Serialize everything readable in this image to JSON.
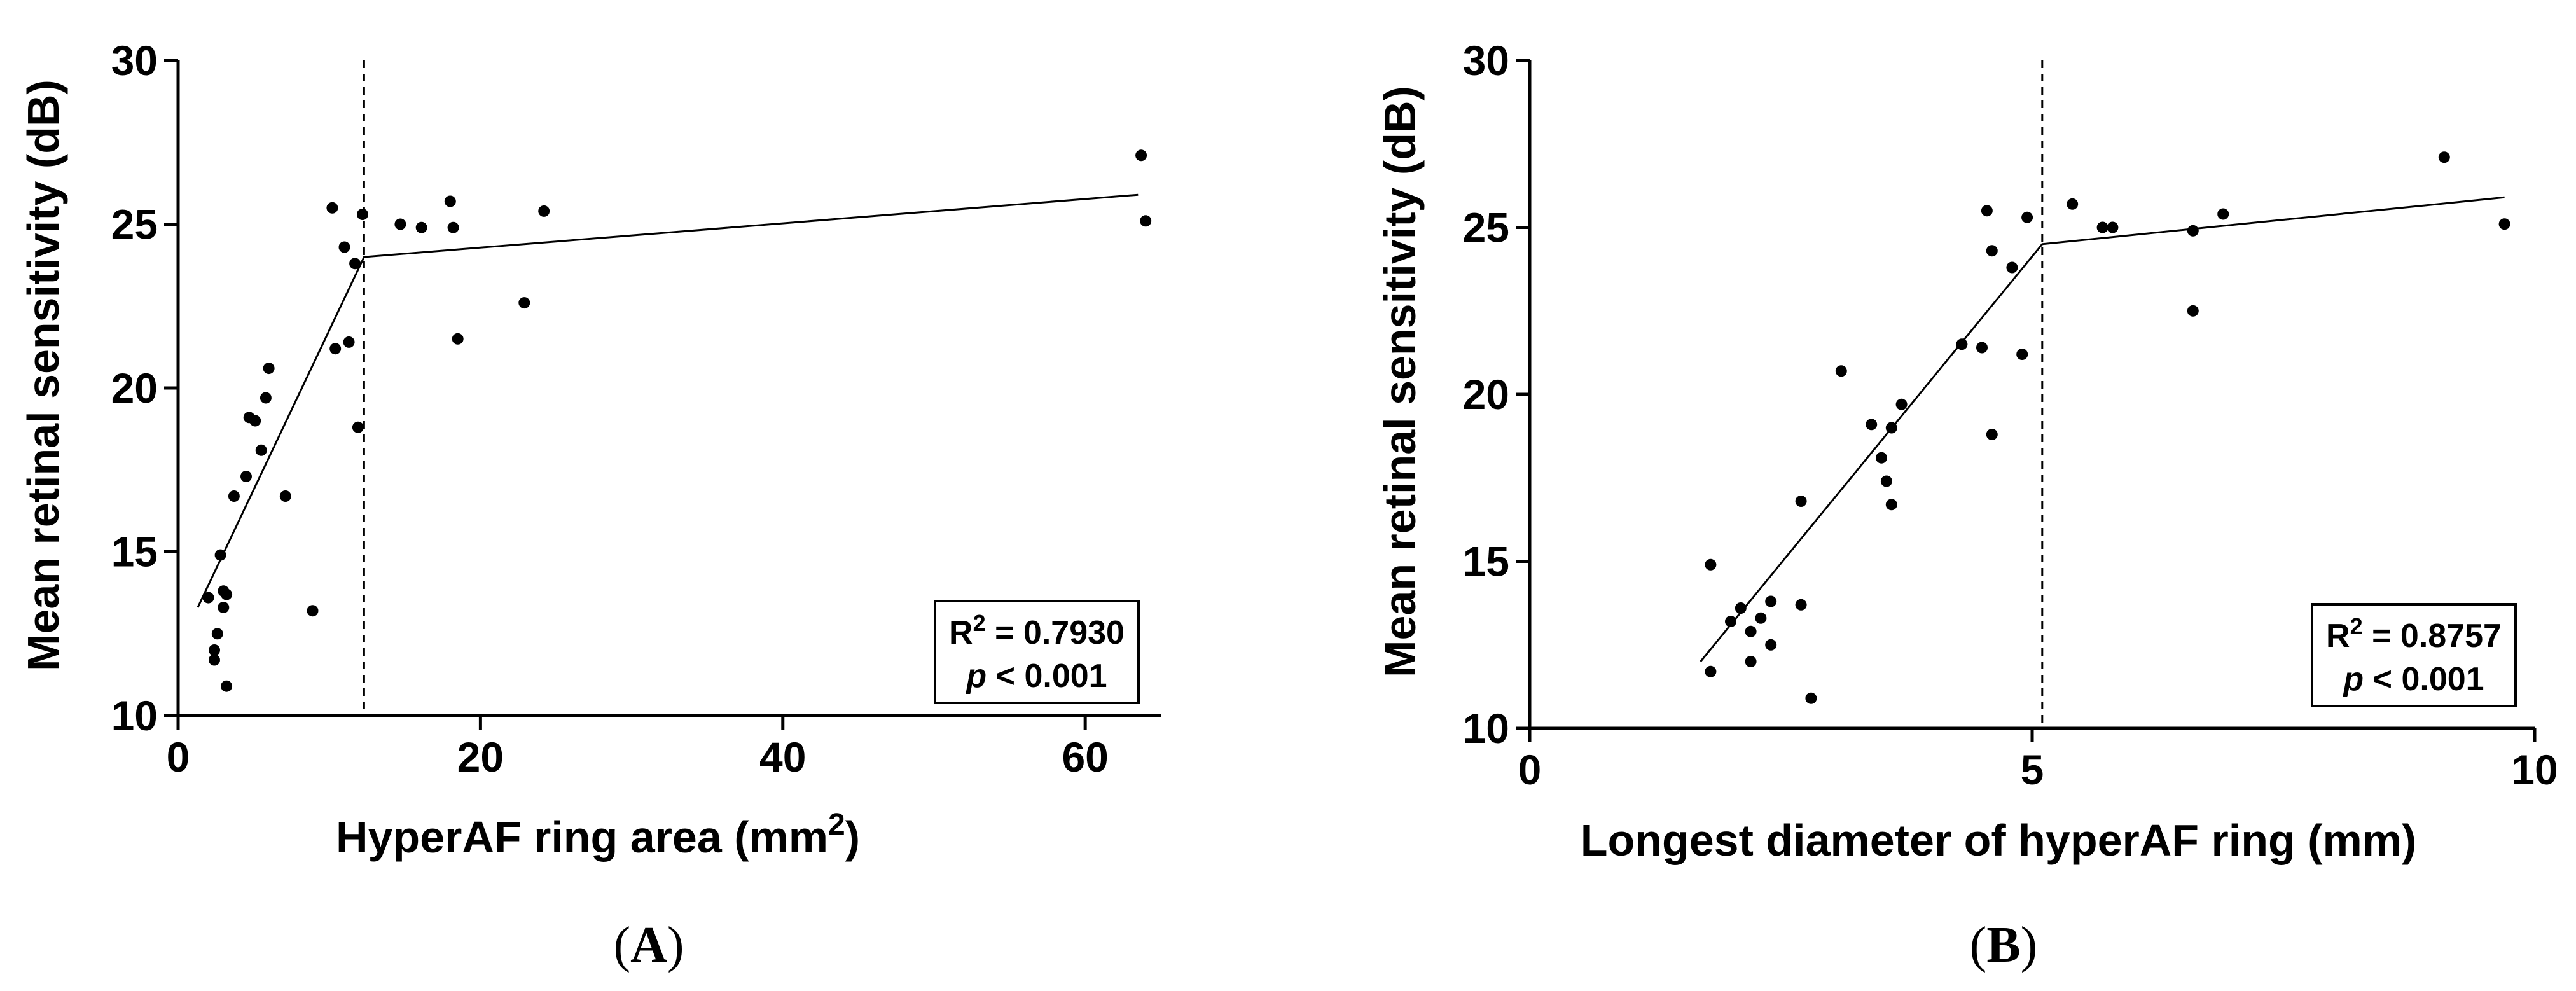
{
  "chart_data": [
    {
      "type": "scatter",
      "panel_label": "A",
      "xlabel": "HyperAF ring area (mm",
      "xlabel_sup": "2",
      "xlabel_tail": ")",
      "ylabel": "Mean retinal sensitivity (dB)",
      "xlim": [
        0,
        65
      ],
      "ylim": [
        10,
        30
      ],
      "xticks": [
        0,
        20,
        40,
        60
      ],
      "yticks": [
        10,
        15,
        20,
        25,
        30
      ],
      "grid": false,
      "breakpoint_x": 12.3,
      "fit_line": [
        [
          1.3,
          13.3
        ],
        [
          12.3,
          24.0
        ],
        [
          63.5,
          25.9
        ]
      ],
      "stats": {
        "r2_label": "R",
        "r2_sup": "2",
        "r2_value": " = 0.7930",
        "p_label": "p",
        "p_value": " < 0.001"
      },
      "points": [
        {
          "x": 2.0,
          "y": 13.6
        },
        {
          "x": 2.4,
          "y": 12.0
        },
        {
          "x": 2.4,
          "y": 11.7
        },
        {
          "x": 2.6,
          "y": 12.5
        },
        {
          "x": 2.8,
          "y": 14.9
        },
        {
          "x": 3.0,
          "y": 13.8
        },
        {
          "x": 3.0,
          "y": 13.3
        },
        {
          "x": 3.2,
          "y": 13.7
        },
        {
          "x": 3.2,
          "y": 10.9
        },
        {
          "x": 3.7,
          "y": 16.7
        },
        {
          "x": 4.5,
          "y": 17.3
        },
        {
          "x": 4.7,
          "y": 19.1
        },
        {
          "x": 5.1,
          "y": 19.0
        },
        {
          "x": 5.5,
          "y": 18.1
        },
        {
          "x": 5.8,
          "y": 19.7
        },
        {
          "x": 6.0,
          "y": 20.6
        },
        {
          "x": 7.1,
          "y": 16.7
        },
        {
          "x": 8.9,
          "y": 13.2
        },
        {
          "x": 10.2,
          "y": 25.5
        },
        {
          "x": 10.4,
          "y": 21.2
        },
        {
          "x": 11.0,
          "y": 24.3
        },
        {
          "x": 11.3,
          "y": 21.4
        },
        {
          "x": 11.7,
          "y": 23.8
        },
        {
          "x": 11.9,
          "y": 18.8
        },
        {
          "x": 12.2,
          "y": 25.3
        },
        {
          "x": 14.7,
          "y": 25.0
        },
        {
          "x": 16.1,
          "y": 24.9
        },
        {
          "x": 18.0,
          "y": 25.7
        },
        {
          "x": 18.2,
          "y": 24.9
        },
        {
          "x": 18.5,
          "y": 21.5
        },
        {
          "x": 22.9,
          "y": 22.6
        },
        {
          "x": 24.2,
          "y": 25.4
        },
        {
          "x": 63.7,
          "y": 27.1
        },
        {
          "x": 64.0,
          "y": 25.1
        }
      ]
    },
    {
      "type": "scatter",
      "panel_label": "B",
      "xlabel": "Longest diameter of hyperAF ring (mm)",
      "xlabel_sup": "",
      "xlabel_tail": "",
      "ylabel": "Mean retinal sensitivity (dB)",
      "xlim": [
        0,
        10
      ],
      "ylim": [
        10,
        30
      ],
      "xticks": [
        0,
        5,
        10
      ],
      "yticks": [
        10,
        15,
        20,
        25,
        30
      ],
      "grid": false,
      "breakpoint_x": 5.1,
      "fit_line": [
        [
          1.7,
          12.0
        ],
        [
          5.1,
          24.5
        ],
        [
          9.7,
          25.9
        ]
      ],
      "stats": {
        "r2_label": "R",
        "r2_sup": "2",
        "r2_value": " = 0.8757",
        "p_label": "p",
        "p_value": " < 0.001"
      },
      "points": [
        {
          "x": 1.8,
          "y": 14.9
        },
        {
          "x": 1.8,
          "y": 11.7
        },
        {
          "x": 2.0,
          "y": 13.2
        },
        {
          "x": 2.1,
          "y": 13.6
        },
        {
          "x": 2.2,
          "y": 12.9
        },
        {
          "x": 2.2,
          "y": 12.0
        },
        {
          "x": 2.3,
          "y": 13.3
        },
        {
          "x": 2.4,
          "y": 13.8
        },
        {
          "x": 2.4,
          "y": 12.5
        },
        {
          "x": 2.7,
          "y": 13.7
        },
        {
          "x": 2.7,
          "y": 16.8
        },
        {
          "x": 2.8,
          "y": 10.9
        },
        {
          "x": 3.1,
          "y": 20.7
        },
        {
          "x": 3.4,
          "y": 19.1
        },
        {
          "x": 3.5,
          "y": 18.1
        },
        {
          "x": 3.55,
          "y": 17.4
        },
        {
          "x": 3.6,
          "y": 16.7
        },
        {
          "x": 3.6,
          "y": 19.0
        },
        {
          "x": 3.7,
          "y": 19.7
        },
        {
          "x": 4.3,
          "y": 21.5
        },
        {
          "x": 4.5,
          "y": 21.4
        },
        {
          "x": 4.55,
          "y": 25.5
        },
        {
          "x": 4.6,
          "y": 18.8
        },
        {
          "x": 4.6,
          "y": 24.3
        },
        {
          "x": 4.8,
          "y": 23.8
        },
        {
          "x": 4.9,
          "y": 21.2
        },
        {
          "x": 4.95,
          "y": 25.3
        },
        {
          "x": 5.4,
          "y": 25.7
        },
        {
          "x": 5.7,
          "y": 25.0
        },
        {
          "x": 5.8,
          "y": 25.0
        },
        {
          "x": 6.6,
          "y": 24.9
        },
        {
          "x": 6.6,
          "y": 22.5
        },
        {
          "x": 6.9,
          "y": 25.4
        },
        {
          "x": 9.1,
          "y": 27.1
        },
        {
          "x": 9.7,
          "y": 25.1
        }
      ]
    }
  ]
}
